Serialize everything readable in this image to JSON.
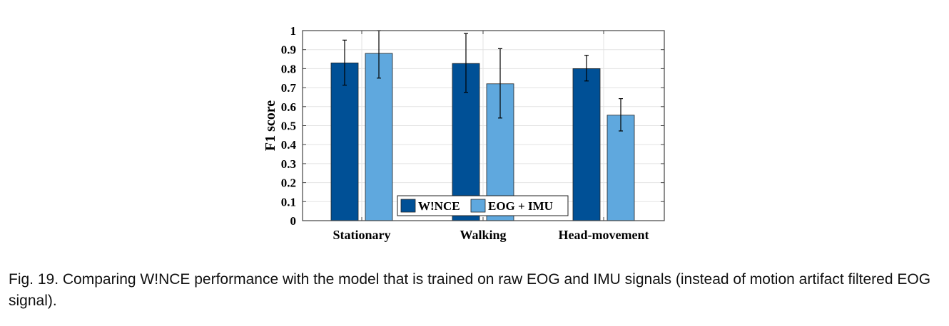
{
  "chart_data": {
    "type": "bar",
    "categories": [
      "Stationary",
      "Walking",
      "Head-movement"
    ],
    "series": [
      {
        "name": "W!NCE",
        "color": "#005096",
        "values": [
          0.83,
          0.827,
          0.8
        ],
        "err_low": [
          0.713,
          0.675,
          0.735
        ],
        "err_high": [
          0.95,
          0.985,
          0.87
        ]
      },
      {
        "name": "EOG + IMU",
        "color": "#5FA8DE",
        "values": [
          0.88,
          0.72,
          0.555
        ],
        "err_low": [
          0.75,
          0.54,
          0.472
        ],
        "err_high": [
          1.0,
          0.905,
          0.642
        ]
      }
    ],
    "ylabel": "F1 score",
    "xlabel": "",
    "ylim": [
      0,
      1
    ],
    "yticks": [
      "0",
      "0.1",
      "0.2",
      "0.3",
      "0.4",
      "0.5",
      "0.6",
      "0.7",
      "0.8",
      "0.9",
      "1"
    ],
    "grid": true,
    "legend_position": "bottom-center",
    "legend_orientation": "horizontal"
  },
  "caption": "Fig. 19.  Comparing W!NCE performance with the model that is trained on raw EOG and IMU signals (instead of motion artifact filtered EOG signal)."
}
